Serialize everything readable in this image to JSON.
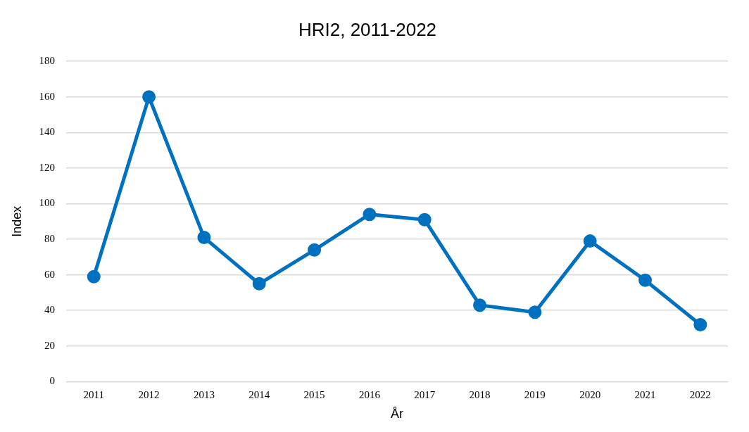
{
  "chart_data": {
    "type": "line",
    "title": "HRI2, 2011-2022",
    "x_label": "År",
    "y_label": "Index",
    "categories": [
      "2011",
      "2012",
      "2013",
      "2014",
      "2015",
      "2016",
      "2017",
      "2018",
      "2019",
      "2020",
      "2021",
      "2022"
    ],
    "values": [
      59,
      160,
      81,
      55,
      74,
      94,
      91,
      43,
      39,
      79,
      57,
      32
    ],
    "color": "#0070c0",
    "marker": "circle",
    "line_style": "solid",
    "ylim": [
      0,
      180
    ],
    "yticks": [
      0,
      20,
      40,
      60,
      80,
      100,
      120,
      140,
      160,
      180
    ],
    "grid": true
  }
}
